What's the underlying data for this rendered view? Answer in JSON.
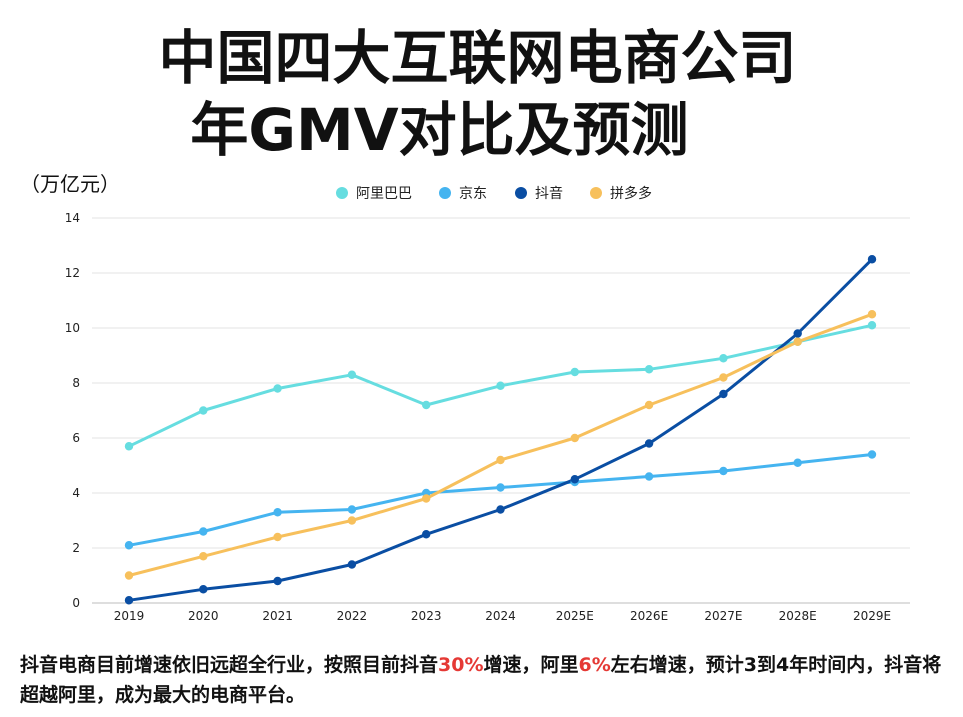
{
  "chart_data": {
    "type": "line",
    "title_line1": "中国四大互联网电商公司",
    "title_line2": "年GMV对比及预测",
    "unit_label": "（万亿元）",
    "categories": [
      "2019",
      "2020",
      "2021",
      "2022",
      "2023",
      "2024",
      "2025E",
      "2026E",
      "2027E",
      "2028E",
      "2029E"
    ],
    "ylim": [
      0,
      14
    ],
    "yticks": [
      "0",
      "2",
      "4",
      "6",
      "8",
      "10",
      "12",
      "14"
    ],
    "grid": true,
    "legend_position": "top-center",
    "series": [
      {
        "name": "阿里巴巴",
        "color": "#66dde0",
        "values": [
          5.7,
          7.0,
          7.8,
          8.3,
          7.2,
          7.9,
          8.4,
          8.5,
          8.9,
          9.5,
          10.1
        ]
      },
      {
        "name": "京东",
        "color": "#45b4f0",
        "values": [
          2.1,
          2.6,
          3.3,
          3.4,
          4.0,
          4.2,
          4.4,
          4.6,
          4.8,
          5.1,
          5.4
        ]
      },
      {
        "name": "抖音",
        "color": "#0a4ea3",
        "values": [
          0.1,
          0.5,
          0.8,
          1.4,
          2.5,
          3.4,
          4.5,
          5.8,
          7.6,
          9.8,
          12.5
        ]
      },
      {
        "name": "拼多多",
        "color": "#f7c05c",
        "values": [
          1.0,
          1.7,
          2.4,
          3.0,
          3.8,
          5.2,
          6.0,
          7.2,
          8.2,
          9.5,
          10.5
        ]
      }
    ]
  },
  "caption": {
    "part1": "抖音电商目前增速依旧远超全行业，按照目前抖音",
    "hl1": "30%",
    "part2": "增速，阿里",
    "hl2": "6%",
    "part3": "左右增速，预计3到4年时间内，抖音将超越阿里，成为最大的电商平台。"
  }
}
